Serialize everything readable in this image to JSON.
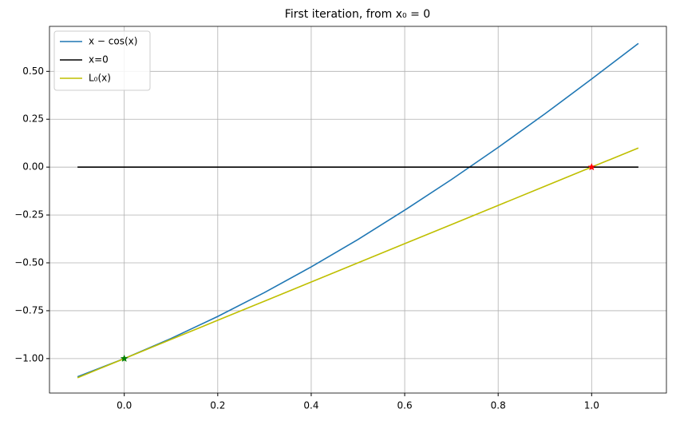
{
  "chart_data": {
    "type": "line",
    "title": "First iteration, from x₀ = 0",
    "x": [
      -0.1,
      0,
      0.1,
      0.2,
      0.3,
      0.4,
      0.5,
      0.6,
      0.7,
      0.8,
      0.9,
      1.0,
      1.1
    ],
    "series": [
      {
        "name": "x − cos(x)",
        "color": "#1f77b4",
        "values": [
          -1.095,
          -1,
          -0.895,
          -0.78,
          -0.655,
          -0.521,
          -0.378,
          -0.225,
          -0.065,
          0.103,
          0.278,
          0.46,
          0.646
        ]
      },
      {
        "name": "x=0",
        "color": "#000000",
        "values": [
          0,
          0,
          0,
          0,
          0,
          0,
          0,
          0,
          0,
          0,
          0,
          0,
          0
        ]
      },
      {
        "name": "L₀(x)",
        "color": "#bfbf00",
        "values": [
          -1.1,
          -1,
          -0.9,
          -0.8,
          -0.7,
          -0.6,
          -0.5,
          -0.4,
          -0.3,
          -0.2,
          -0.1,
          0,
          0.1
        ]
      }
    ],
    "markers": [
      {
        "x": 0,
        "y": -1,
        "color": "#008000"
      },
      {
        "x": 1,
        "y": 0,
        "color": "#ff0000"
      }
    ],
    "xlim": [
      -0.16,
      1.16
    ],
    "ylim": [
      -1.18,
      0.735
    ],
    "xticks": [
      {
        "value": 0,
        "label": "0.0"
      },
      {
        "value": 0.2,
        "label": "0.2"
      },
      {
        "value": 0.4,
        "label": "0.4"
      },
      {
        "value": 0.6,
        "label": "0.6"
      },
      {
        "value": 0.8,
        "label": "0.8"
      },
      {
        "value": 1.0,
        "label": "1.0"
      }
    ],
    "yticks": [
      {
        "value": -1,
        "label": "−1.00"
      },
      {
        "value": -0.75,
        "label": "−0.75"
      },
      {
        "value": -0.5,
        "label": "−0.50"
      },
      {
        "value": -0.25,
        "label": "−0.25"
      },
      {
        "value": 0,
        "label": "0.00"
      },
      {
        "value": 0.25,
        "label": "0.25"
      },
      {
        "value": 0.5,
        "label": "0.50"
      }
    ],
    "grid": true,
    "legend": "upper-left"
  }
}
